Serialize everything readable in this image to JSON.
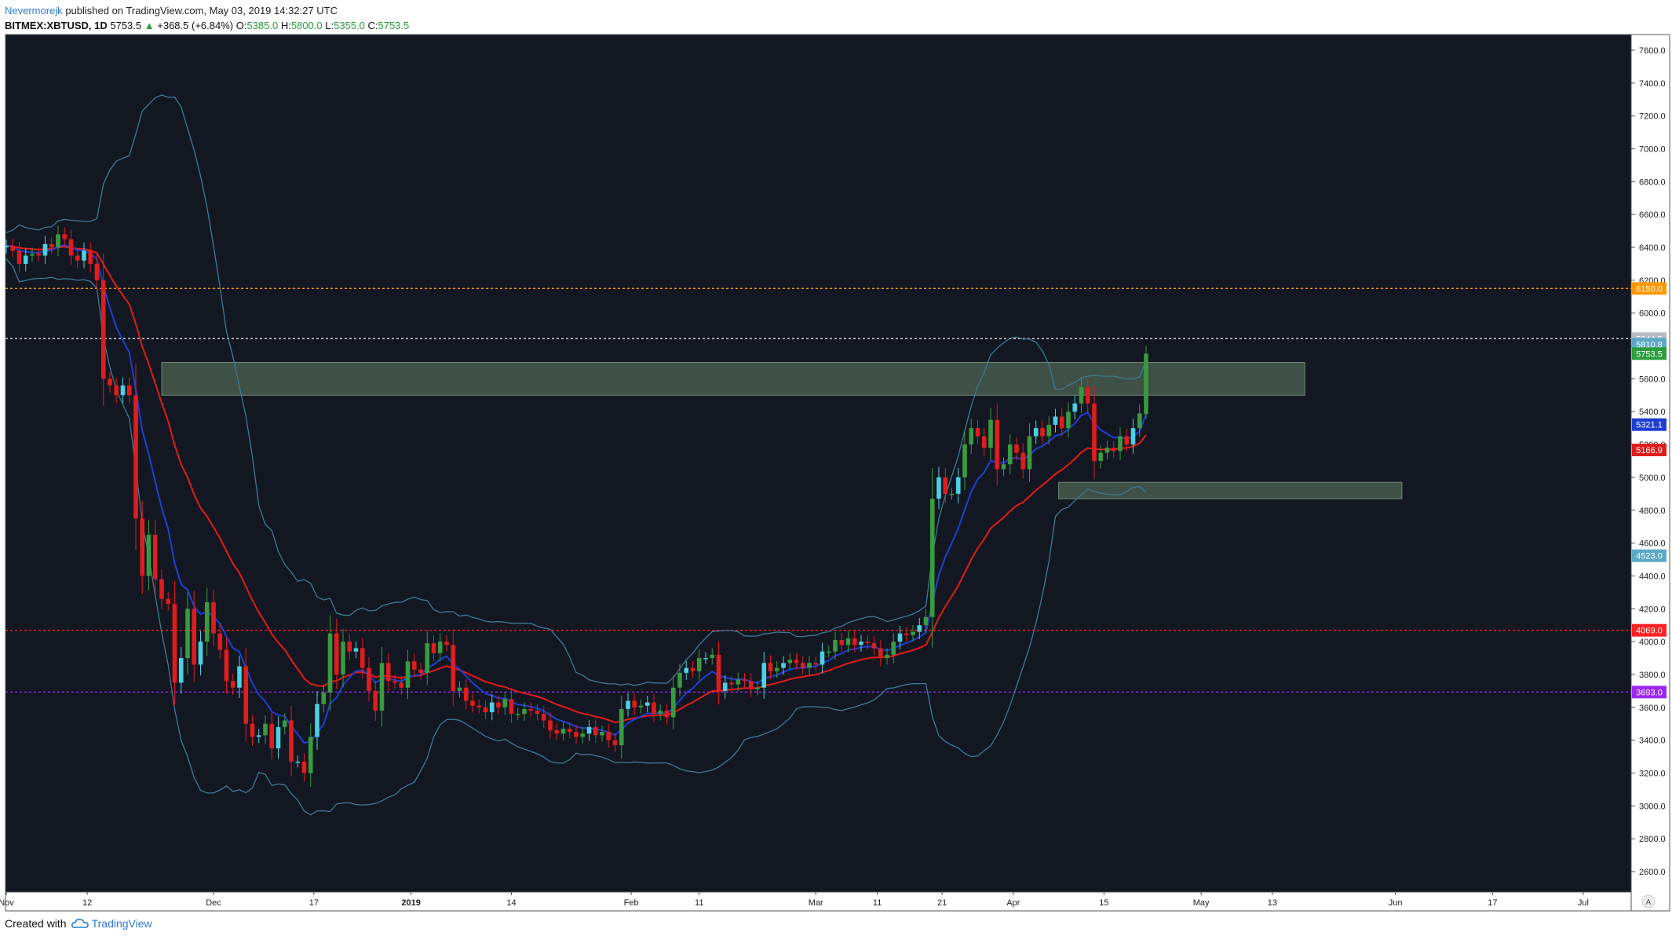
{
  "header": {
    "author": "Nevermorejk",
    "published": "published on TradingView.com, May 03, 2019 14:32:27 UTC",
    "symbol": "BITMEX:XBTUSD, 1D",
    "last": "5753.5",
    "change_arrow": "▲",
    "change": "+368.5 (+6.84%)",
    "o_label": "O:",
    "o_val": "5385.0",
    "h_label": "H:",
    "h_val": "5800.0",
    "l_label": "L:",
    "l_val": "5355.0",
    "c_label": "C:",
    "c_val": "5753.5"
  },
  "footer": {
    "created_with": "Created with",
    "brand": "TradingView"
  },
  "colors": {
    "background": "#131722",
    "up": "#3a9b3e",
    "down": "#e01d1d",
    "up_alt": "#4dd0e1",
    "ema_fast": "#1f3fd1",
    "ema_slow": "#e31b1b",
    "band": "#3e7a96",
    "orange_line": "#ff9800",
    "red_line": "#ff2020",
    "purple_line": "#9c27f0",
    "white_line": "#cfd2d6",
    "zone": "#4f6653"
  },
  "chart_data": {
    "type": "candlestick",
    "y_range": [
      2500,
      7700
    ],
    "y_ticks": [
      2600,
      2800,
      3000,
      3200,
      3400,
      3600,
      3800,
      4000,
      4200,
      4400,
      4600,
      4800,
      5000,
      5200,
      5400,
      5600,
      5800,
      6000,
      6200,
      6400,
      6600,
      6800,
      7000,
      7200,
      7400,
      7600
    ],
    "x_ticks": [
      "Nov",
      "12",
      "Dec",
      "17",
      "2019",
      "14",
      "Feb",
      "11",
      "Mar",
      "11",
      "21",
      "Apr",
      "15",
      "May",
      "13",
      "Jun",
      "17",
      "Jul"
    ],
    "x_tick_days": [
      -9.5,
      3,
      22.5,
      38,
      53,
      68.5,
      87,
      97.5,
      115.5,
      125,
      135,
      146,
      160,
      175,
      186,
      205,
      220,
      234
    ],
    "axis_corner": "A",
    "horizontal_levels": [
      {
        "value": 6150.0,
        "label": "6150.0",
        "color": "#ff9800"
      },
      {
        "value": 5844.5,
        "label": "5844.5",
        "color": "#cfd2d6"
      },
      {
        "value": 4069.0,
        "label": "4069.0",
        "color": "#ff2020"
      },
      {
        "value": 3693.0,
        "label": "3693.0",
        "color": "#9c27f0"
      }
    ],
    "price_tags": [
      {
        "value": 5810.8,
        "label": "5810.8",
        "color": "#5aa9c6"
      },
      {
        "value": 5753.5,
        "label": "5753.5",
        "color": "#2a9d3c"
      },
      {
        "value": 5321.1,
        "label": "5321.1",
        "color": "#1f3fd1"
      },
      {
        "value": 5166.9,
        "label": "5166.9",
        "color": "#e01d1d"
      },
      {
        "value": 4523.0,
        "label": "4523.0",
        "color": "#5aa9c6"
      }
    ],
    "zones": [
      {
        "from_day": 14.5,
        "to_day": 191,
        "low": 5500,
        "high": 5700
      },
      {
        "from_day": 153,
        "to_day": 206,
        "low": 4870,
        "high": 4970
      }
    ],
    "closes": [
      6410,
      6380,
      6300,
      6350,
      6360,
      6350,
      6420,
      6400,
      6480,
      6450,
      6350,
      6320,
      6380,
      6300,
      6200,
      5600,
      5560,
      5500,
      5560,
      5500,
      4750,
      4400,
      4650,
      4380,
      4260,
      4230,
      3750,
      3900,
      4200,
      3860,
      4000,
      4240,
      4050,
      3950,
      3760,
      3720,
      3850,
      3500,
      3420,
      3430,
      3500,
      3350,
      3480,
      3520,
      3270,
      3270,
      3200,
      3420,
      3620,
      3690,
      4050,
      3800,
      4000,
      3940,
      3960,
      3840,
      3700,
      3580,
      3870,
      3760,
      3750,
      3720,
      3880,
      3830,
      3810,
      3990,
      3930,
      4000,
      3980,
      3700,
      3720,
      3640,
      3610,
      3600,
      3570,
      3630,
      3600,
      3650,
      3560,
      3560,
      3590,
      3580,
      3560,
      3520,
      3460,
      3440,
      3470,
      3450,
      3420,
      3440,
      3480,
      3430,
      3450,
      3400,
      3370,
      3590,
      3640,
      3600,
      3610,
      3630,
      3560,
      3580,
      3540,
      3720,
      3810,
      3840,
      3820,
      3900,
      3900,
      3920,
      3700,
      3750,
      3740,
      3770,
      3760,
      3710,
      3720,
      3870,
      3820,
      3840,
      3870,
      3890,
      3870,
      3840,
      3870,
      3860,
      3940,
      3940,
      4010,
      3980,
      4020,
      3980,
      4000,
      3990,
      3960,
      3900,
      3920,
      4000,
      4050,
      4040,
      4060,
      4100,
      4150,
      4870,
      5000,
      4900,
      4900,
      5000,
      5200,
      5300,
      5250,
      5180,
      5350,
      5050,
      5080,
      5200,
      5150,
      5050,
      5250,
      5300,
      5250,
      5320,
      5370,
      5300,
      5400,
      5450,
      5550,
      5450,
      5100,
      5150,
      5180,
      5160,
      5250,
      5200,
      5300,
      5390,
      5753.5
    ]
  }
}
